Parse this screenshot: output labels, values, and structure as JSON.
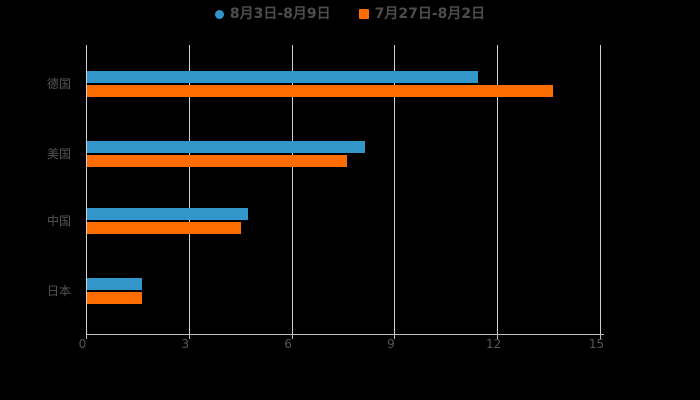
{
  "chart_data": {
    "type": "bar",
    "orientation": "horizontal",
    "title": "",
    "categories": [
      "德国",
      "美国",
      "中国",
      "日本"
    ],
    "series": [
      {
        "name": "8月3日-8月9日",
        "color": "#3296cb",
        "marker": "circle",
        "values": [
          11.4,
          8.1,
          4.7,
          1.6
        ]
      },
      {
        "name": "7月27日-8月2日",
        "color": "#ff6c00",
        "marker": "square",
        "values": [
          13.6,
          7.6,
          4.5,
          1.6
        ]
      }
    ],
    "xlim": [
      0,
      15
    ],
    "xticks": [
      "0",
      "3",
      "6",
      "9",
      "12",
      "15"
    ],
    "grid": true,
    "legend_position": "top-center",
    "background_color": "#000000",
    "grid_color": "#d0d0d0",
    "axis_color": "#c0c0c0",
    "text_color": "#555555",
    "legend_text_color": "#4d4d4d"
  }
}
